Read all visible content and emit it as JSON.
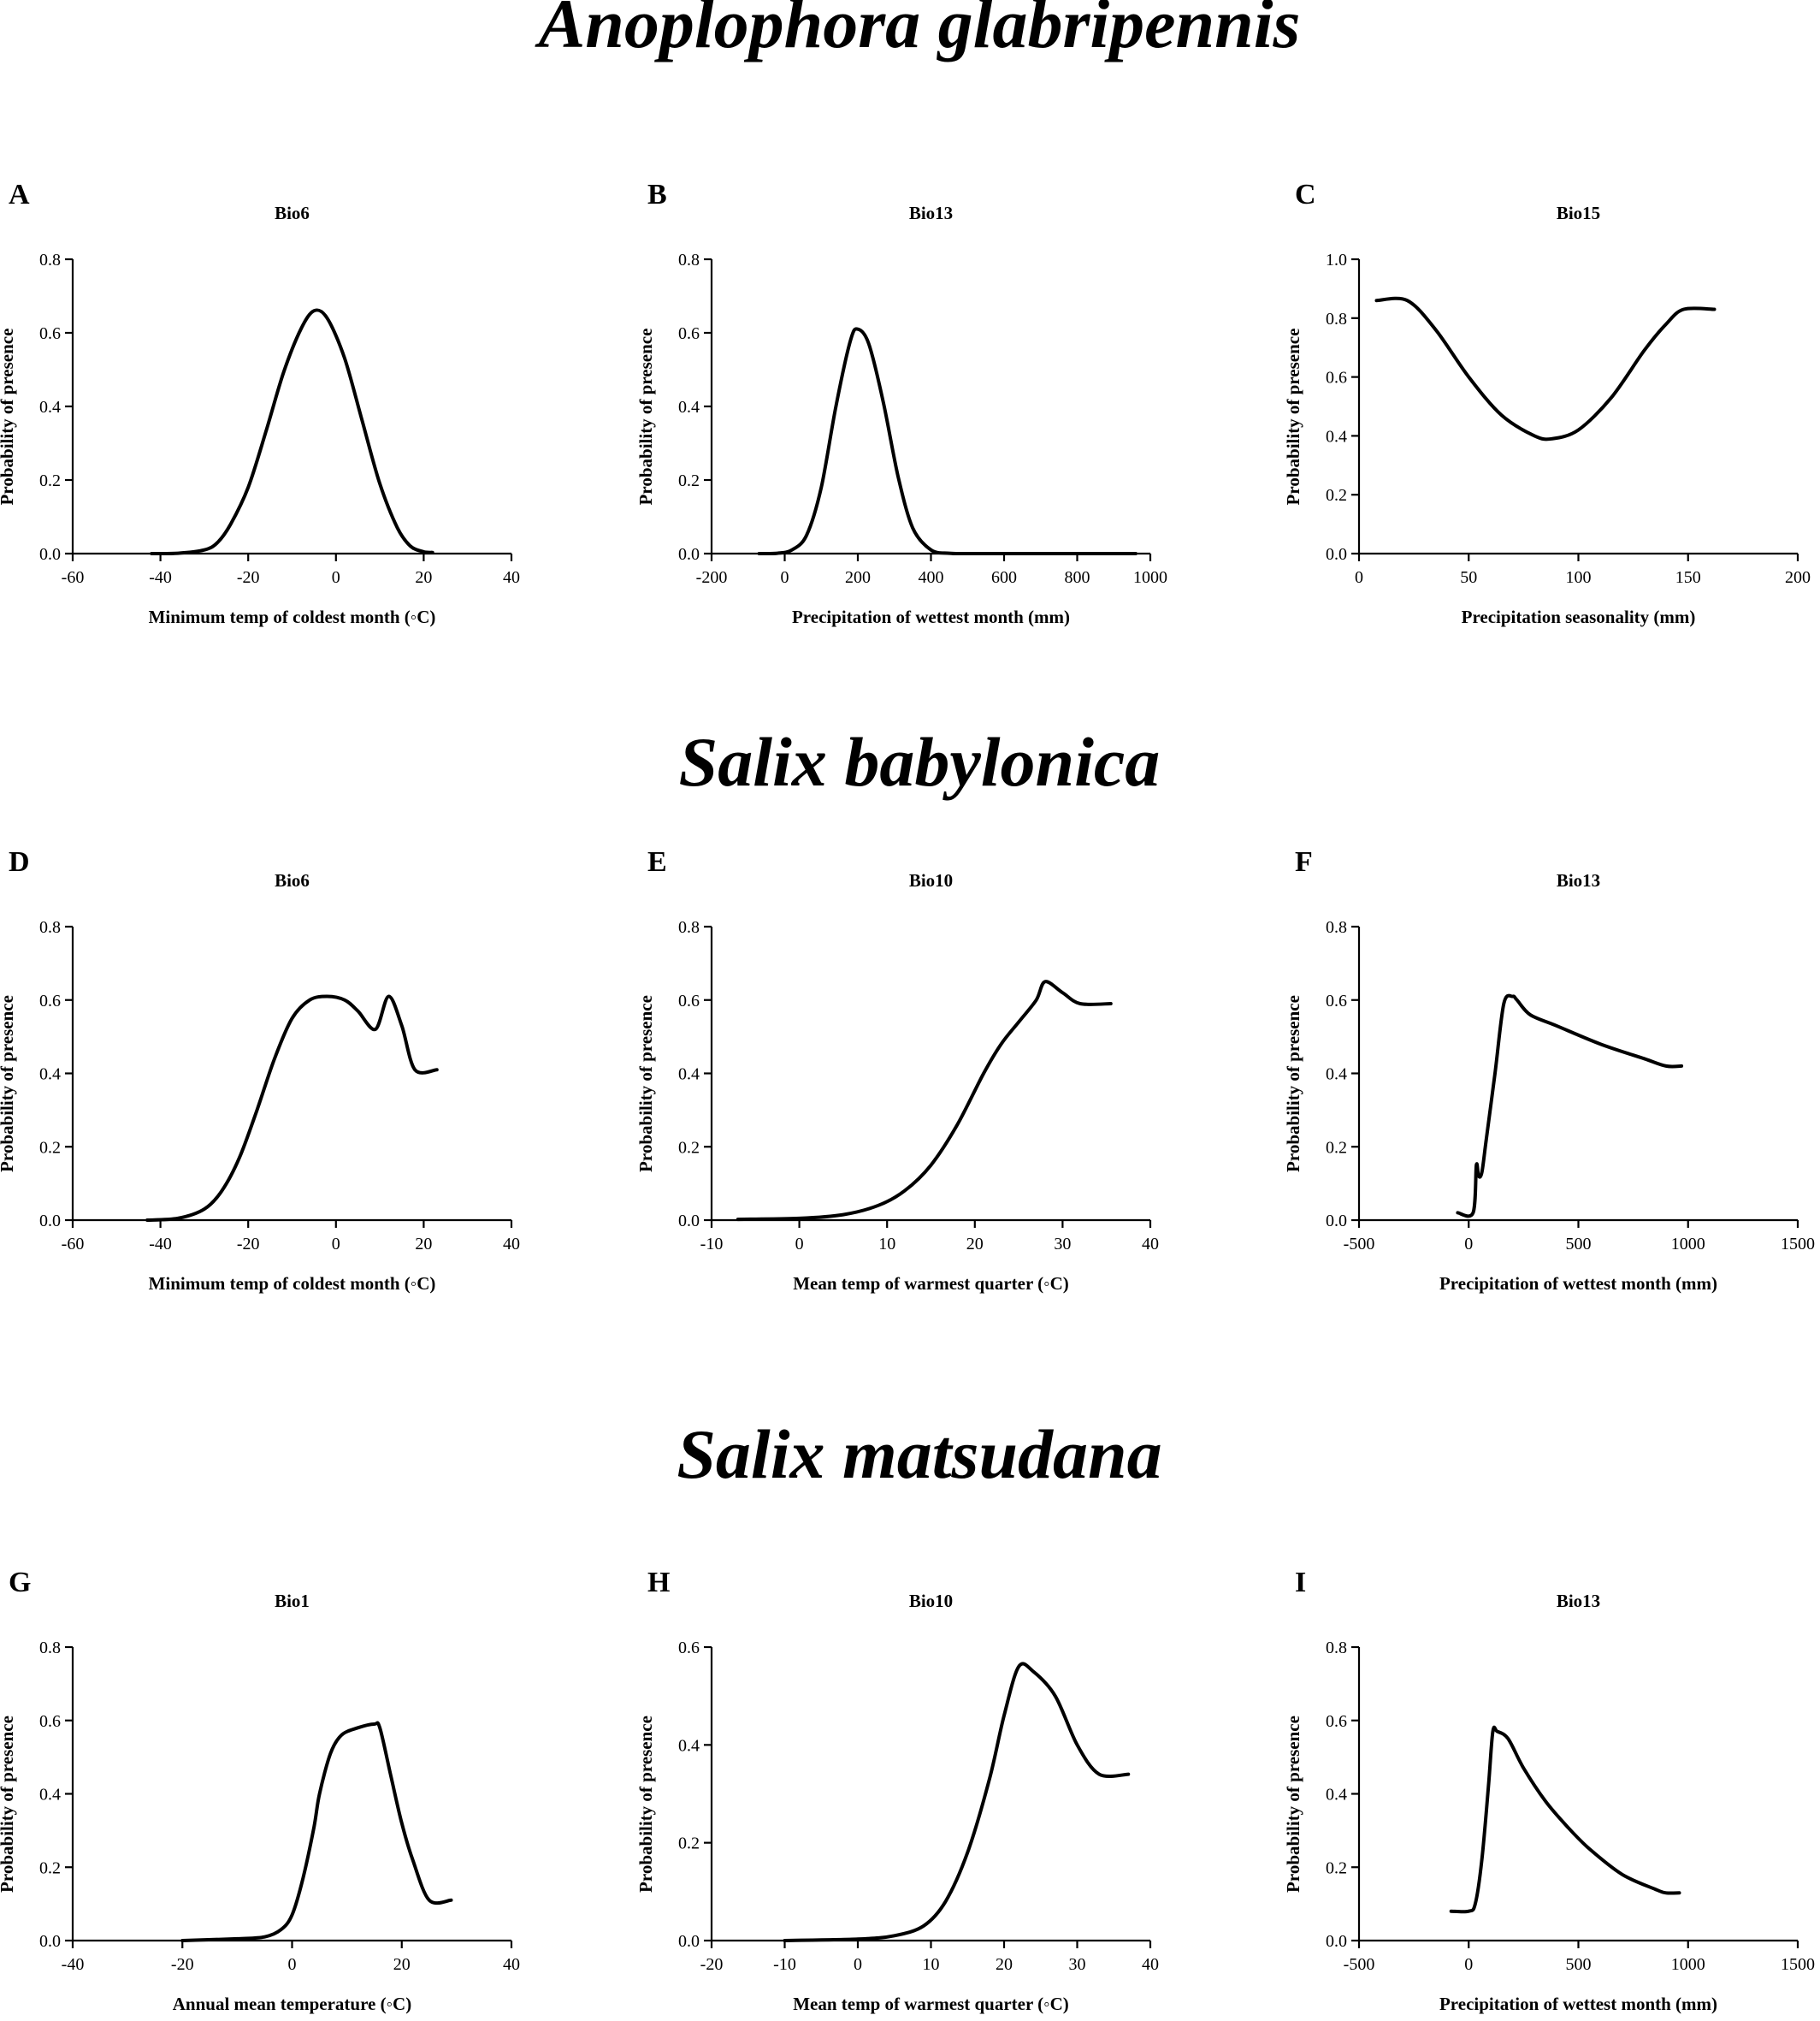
{
  "species_titles": [
    "Anoplophora glabripennis",
    "Salix babylonica",
    "Salix matsudana"
  ],
  "chart_data": [
    {
      "letter": "A",
      "title": "Bio6",
      "type": "line",
      "xlabel": "Minimum temp of coldest month (◦C)",
      "ylabel": "Probability of presence",
      "xlim": [
        -60,
        40
      ],
      "xticks": [
        -60,
        -40,
        -20,
        0,
        20,
        40
      ],
      "ylim": [
        0,
        0.8
      ],
      "yticks": [
        "0.0",
        "0.2",
        "0.4",
        "0.6",
        "0.8"
      ],
      "series": [
        {
          "x": [
            -42,
            -36,
            -30,
            -27,
            -24,
            -20,
            -16,
            -12,
            -8,
            -5,
            -2,
            2,
            6,
            10,
            14,
            17,
            20,
            22
          ],
          "y": [
            0,
            0.001,
            0.01,
            0.03,
            0.08,
            0.18,
            0.33,
            0.49,
            0.61,
            0.66,
            0.64,
            0.53,
            0.36,
            0.19,
            0.07,
            0.02,
            0.005,
            0.003
          ]
        }
      ]
    },
    {
      "letter": "B",
      "title": "Bio13",
      "type": "line",
      "xlabel": "Precipitation of wettest month (mm)",
      "ylabel": "Probability of presence",
      "xlim": [
        -200,
        1000
      ],
      "xticks": [
        -200,
        0,
        200,
        400,
        600,
        800,
        1000
      ],
      "ylim": [
        0,
        0.8
      ],
      "yticks": [
        "0.0",
        "0.2",
        "0.4",
        "0.6",
        "0.8"
      ],
      "series": [
        {
          "x": [
            -70,
            -20,
            20,
            60,
            100,
            140,
            180,
            200,
            230,
            270,
            310,
            350,
            400,
            450,
            500,
            600,
            800,
            960
          ],
          "y": [
            0,
            0.001,
            0.01,
            0.05,
            0.18,
            0.4,
            0.58,
            0.61,
            0.57,
            0.41,
            0.21,
            0.07,
            0.01,
            0.001,
            0,
            0,
            0,
            0
          ]
        }
      ]
    },
    {
      "letter": "C",
      "title": "Bio15",
      "type": "line",
      "xlabel": "Precipitation seasonality (mm)",
      "ylabel": "Probability of presence",
      "xlim": [
        0,
        200
      ],
      "xticks": [
        0,
        50,
        100,
        150,
        200
      ],
      "ylim": [
        0,
        1.0
      ],
      "yticks": [
        "0.0",
        "0.2",
        "0.4",
        "0.6",
        "0.8",
        "1.0"
      ],
      "series": [
        {
          "x": [
            8,
            22,
            35,
            50,
            65,
            80,
            88,
            100,
            115,
            130,
            140,
            148,
            162
          ],
          "y": [
            0.86,
            0.86,
            0.76,
            0.6,
            0.47,
            0.4,
            0.39,
            0.42,
            0.53,
            0.69,
            0.78,
            0.83,
            0.83
          ]
        }
      ]
    },
    {
      "letter": "D",
      "title": "Bio6",
      "type": "line",
      "xlabel": "Minimum temp of coldest month (◦C)",
      "ylabel": "Probability of presence",
      "xlim": [
        -60,
        40
      ],
      "xticks": [
        -60,
        -40,
        -20,
        0,
        20,
        40
      ],
      "ylim": [
        0,
        0.8
      ],
      "yticks": [
        "0.0",
        "0.2",
        "0.4",
        "0.6",
        "0.8"
      ],
      "series": [
        {
          "x": [
            -43,
            -36,
            -30,
            -26,
            -22,
            -18,
            -14,
            -10,
            -6,
            -2,
            2,
            5,
            9,
            12,
            15,
            18,
            23
          ],
          "y": [
            0,
            0.005,
            0.03,
            0.08,
            0.17,
            0.3,
            0.44,
            0.55,
            0.6,
            0.61,
            0.6,
            0.57,
            0.52,
            0.61,
            0.53,
            0.41,
            0.41
          ]
        }
      ]
    },
    {
      "letter": "E",
      "title": "Bio10",
      "type": "line",
      "xlabel": "Mean temp of warmest quarter (◦C)",
      "ylabel": "Probability of presence",
      "xlim": [
        -10,
        40
      ],
      "xticks": [
        -10,
        0,
        10,
        20,
        30,
        40
      ],
      "ylim": [
        0,
        0.8
      ],
      "yticks": [
        "0.0",
        "0.2",
        "0.4",
        "0.6",
        "0.8"
      ],
      "series": [
        {
          "x": [
            -7,
            0,
            5,
            9,
            12,
            15,
            18,
            21,
            23,
            25,
            27,
            28,
            30,
            32,
            35.5
          ],
          "y": [
            0.002,
            0.005,
            0.015,
            0.04,
            0.08,
            0.15,
            0.26,
            0.4,
            0.48,
            0.54,
            0.6,
            0.65,
            0.62,
            0.59,
            0.59
          ]
        }
      ]
    },
    {
      "letter": "F",
      "title": "Bio13",
      "type": "line",
      "xlabel": "Precipitation of wettest month (mm)",
      "ylabel": "Probability of presence",
      "xlim": [
        -500,
        1500
      ],
      "xticks": [
        -500,
        0,
        500,
        1000,
        1500
      ],
      "ylim": [
        0,
        0.8
      ],
      "yticks": [
        "0.0",
        "0.2",
        "0.4",
        "0.6",
        "0.8"
      ],
      "series": [
        {
          "x": [
            -50,
            20,
            35,
            45,
            60,
            80,
            120,
            160,
            200,
            220,
            280,
            400,
            600,
            800,
            900,
            970
          ],
          "y": [
            0.02,
            0.02,
            0.15,
            0.12,
            0.13,
            0.22,
            0.4,
            0.59,
            0.61,
            0.6,
            0.56,
            0.53,
            0.48,
            0.44,
            0.42,
            0.42
          ]
        }
      ]
    },
    {
      "letter": "G",
      "title": "Bio1",
      "type": "line",
      "xlabel": "Annual mean temperature (◦C)",
      "ylabel": "Probability of presence",
      "xlim": [
        -40,
        40
      ],
      "xticks": [
        -40,
        -20,
        0,
        20,
        40
      ],
      "ylim": [
        0,
        0.8
      ],
      "yticks": [
        "0.0",
        "0.2",
        "0.4",
        "0.6",
        "0.8"
      ],
      "series": [
        {
          "x": [
            -20,
            -10,
            -5,
            -2,
            0,
            2,
            4,
            5,
            7,
            9,
            12,
            15,
            16,
            18,
            20,
            22,
            25,
            29
          ],
          "y": [
            0,
            0.005,
            0.01,
            0.03,
            0.07,
            0.17,
            0.31,
            0.4,
            0.51,
            0.56,
            0.58,
            0.59,
            0.58,
            0.45,
            0.32,
            0.22,
            0.11,
            0.11
          ]
        }
      ]
    },
    {
      "letter": "H",
      "title": "Bio10",
      "type": "line",
      "xlabel": "Mean temp of warmest quarter (◦C)",
      "ylabel": "Probability of presence",
      "xlim": [
        -20,
        40
      ],
      "xticks": [
        -20,
        -10,
        0,
        10,
        20,
        30,
        40
      ],
      "ylim": [
        0,
        0.6
      ],
      "yticks": [
        "0.0",
        "0.2",
        "0.4",
        "0.6"
      ],
      "series": [
        {
          "x": [
            -10,
            0,
            5,
            9,
            12,
            15,
            18,
            20,
            22,
            24,
            27,
            30,
            33,
            37
          ],
          "y": [
            0,
            0.003,
            0.01,
            0.03,
            0.08,
            0.18,
            0.33,
            0.46,
            0.56,
            0.55,
            0.5,
            0.4,
            0.34,
            0.34
          ]
        }
      ]
    },
    {
      "letter": "I",
      "title": "Bio13",
      "type": "line",
      "xlabel": "Precipitation of wettest month (mm)",
      "ylabel": "Probability of presence",
      "xlim": [
        -500,
        1500
      ],
      "xticks": [
        -500,
        0,
        500,
        1000,
        1500
      ],
      "ylim": [
        0,
        0.8
      ],
      "yticks": [
        "0.0",
        "0.2",
        "0.4",
        "0.6",
        "0.8"
      ],
      "series": [
        {
          "x": [
            -80,
            0,
            30,
            60,
            90,
            110,
            130,
            180,
            250,
            350,
            450,
            550,
            700,
            850,
            900,
            960
          ],
          "y": [
            0.08,
            0.08,
            0.1,
            0.22,
            0.42,
            0.57,
            0.57,
            0.55,
            0.47,
            0.38,
            0.31,
            0.25,
            0.18,
            0.14,
            0.13,
            0.13
          ]
        }
      ]
    }
  ]
}
